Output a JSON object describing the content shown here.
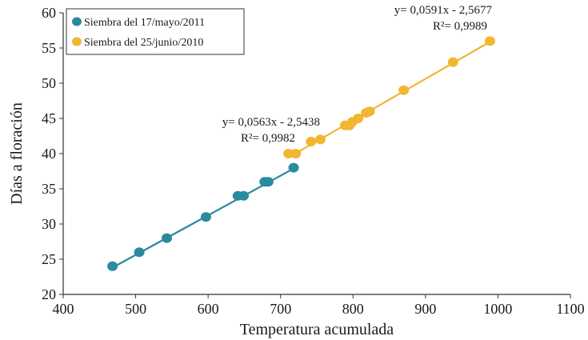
{
  "chart_data": {
    "type": "scatter",
    "title": "",
    "xlabel": "Temperatura acumulada",
    "ylabel": "Días a floración",
    "xlim": [
      400,
      1100
    ],
    "ylim": [
      20,
      60
    ],
    "xticks": [
      400,
      500,
      600,
      700,
      800,
      900,
      1000,
      1100
    ],
    "yticks": [
      20,
      25,
      30,
      35,
      40,
      45,
      50,
      55,
      60
    ],
    "grid": false,
    "legend_position": "top-left",
    "series": [
      {
        "name": "Siembra del 17/mayo/2011",
        "color": "#2a8a9e",
        "points": [
          {
            "x": 468,
            "y": 24
          },
          {
            "x": 505,
            "y": 26
          },
          {
            "x": 543,
            "y": 28
          },
          {
            "x": 597,
            "y": 31
          },
          {
            "x": 641,
            "y": 34
          },
          {
            "x": 649,
            "y": 34
          },
          {
            "x": 678,
            "y": 36
          },
          {
            "x": 683,
            "y": 36
          },
          {
            "x": 718,
            "y": 38
          }
        ],
        "trendline": {
          "x_range": [
            468,
            718
          ],
          "slope": 0.0563,
          "intercept": -2.5438,
          "equation": "y= 0,0563x - 2,5438",
          "r2": "R²= 0,9982"
        }
      },
      {
        "name": "Siembra del 25/junio/2010",
        "color": "#f2b632",
        "points": [
          {
            "x": 711,
            "y": 40
          },
          {
            "x": 721,
            "y": 40
          },
          {
            "x": 742,
            "y": 41.7
          },
          {
            "x": 755,
            "y": 42
          },
          {
            "x": 789,
            "y": 44
          },
          {
            "x": 795,
            "y": 44
          },
          {
            "x": 799,
            "y": 44.5
          },
          {
            "x": 807,
            "y": 45
          },
          {
            "x": 818,
            "y": 45.8
          },
          {
            "x": 823,
            "y": 46
          },
          {
            "x": 870,
            "y": 49
          },
          {
            "x": 938,
            "y": 53
          },
          {
            "x": 989,
            "y": 56
          }
        ],
        "trendline": {
          "x_range": [
            711,
            989
          ],
          "slope": 0.0591,
          "intercept": -2.5677,
          "equation": "y= 0,0591x - 2,5677",
          "r2": "R²= 0,9989"
        }
      }
    ]
  }
}
